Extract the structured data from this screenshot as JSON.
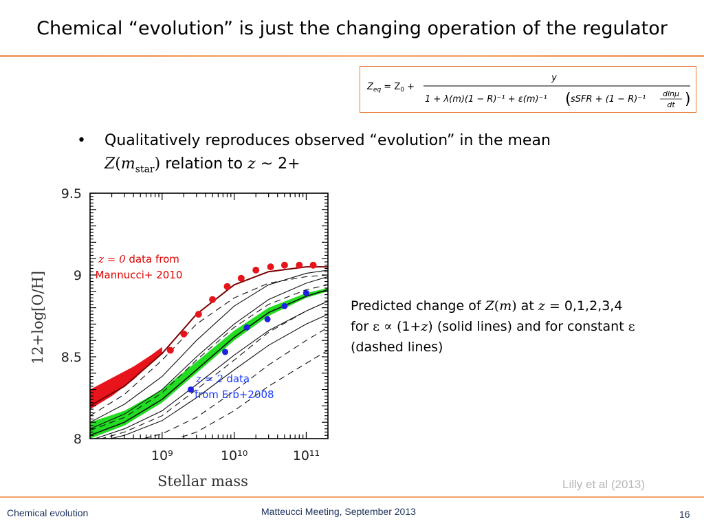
{
  "slide": {
    "title": "Chemical “evolution” is just the changing operation of the regulator",
    "bullet_dot": "•",
    "bullet_line1": "Qualitatively reproduces observed “evolution” in the mean",
    "bullet_Z": "Z",
    "bullet_open": "(",
    "bullet_m": "m",
    "bullet_sub": "star",
    "bullet_close": ")",
    "bullet_rel": " relation to ",
    "bullet_z": "z",
    "bullet_tail": " ~ 2+",
    "predicted_1": "Predicted change of ",
    "predicted_Zm": "Z",
    "predicted_m": "m",
    "predicted_at": " at  ",
    "predicted_z": "z",
    "predicted_vals": " = 0,1,2,3,4",
    "predicted_for": "for ",
    "predicted_eps": "ε ∝",
    "predicted_1plus": " (1+",
    "predicted_zz": "z",
    "predicted_solid": ") (solid lines) and for constant ",
    "predicted_eps2": "ε",
    "predicted_dashed": "(dashed lines)",
    "citation": "Lilly et al (2013)",
    "footer_left": "Chemical evolution",
    "footer_center": "Matteucci Meeting, September  2013",
    "page_number": "16"
  },
  "formula": {
    "lhs": "Z",
    "lhs_sub": "eq",
    "eq": " = Z",
    "z0_sub": "0",
    "plus": " +",
    "numerator": "y",
    "denominator": "1 + λ(m)(1 − R)⁻¹ + ε(m)⁻¹",
    "paren_content": "sSFR + (1 − R)⁻¹",
    "frac_num": "dlnμ",
    "frac_den": "dt"
  },
  "colors": {
    "accent": "#e8742c",
    "red_points": "#e8141c",
    "blue_points": "#2020e0",
    "green_band": "#22dd22",
    "red_band": "#e8141c",
    "dark_red_line": "#7a0000",
    "annotation_red": "#e00000",
    "annotation_blue": "#1a3cff"
  },
  "chart_data": {
    "type": "scatter",
    "xlabel": "Stellar mass",
    "ylabel": "12+log[O/H]",
    "x_scale": "log",
    "xlim": [
      100000000.0,
      200000000000.0
    ],
    "ylim": [
      8.0,
      9.5
    ],
    "yticks": [
      "8",
      "8.5",
      "9",
      "9.5"
    ],
    "xticks": [
      "10⁹",
      "10¹⁰",
      "10¹¹"
    ],
    "annotation_z0_var": "z = 0",
    "annotation_z0_rest": " data from",
    "annotation_z0_line2": "Mannucci+ 2010",
    "annotation_z2_var": "z = 2",
    "annotation_z2_rest": " data",
    "annotation_z2_line2": "from Erb+2008",
    "series": [
      {
        "style": "red-points",
        "x": [
          1300000000.0,
          2000000000.0,
          3200000000.0,
          5000000000.0,
          8000000000.0,
          12500000000.0,
          20000000000.0,
          32000000000.0,
          50000000000.0,
          80000000000.0,
          125000000000.0
        ],
        "y": [
          8.54,
          8.64,
          8.76,
          8.85,
          8.93,
          8.98,
          9.03,
          9.05,
          9.06,
          9.06,
          9.06
        ]
      },
      {
        "style": "blue-points",
        "x": [
          2500000000.0,
          7500000000.0,
          15000000000.0,
          29000000000.0,
          50000000000.0,
          100000000000.0
        ],
        "y": [
          8.3,
          8.53,
          8.68,
          8.73,
          8.81,
          8.89
        ]
      },
      {
        "style": "solid-z0",
        "x": [
          100000000.0,
          300000000.0,
          1000000000.0,
          3000000000.0,
          10000000000.0,
          30000000000.0,
          100000000000.0,
          200000000000.0
        ],
        "y": [
          8.2,
          8.32,
          8.52,
          8.76,
          8.94,
          9.02,
          9.05,
          9.05
        ]
      },
      {
        "style": "solid",
        "x": [
          100000000.0,
          300000000.0,
          1000000000.0,
          3000000000.0,
          10000000000.0,
          30000000000.0,
          100000000000.0,
          200000000000.0
        ],
        "y": [
          8.1,
          8.21,
          8.38,
          8.6,
          8.81,
          8.94,
          9.01,
          9.03
        ]
      },
      {
        "style": "solid",
        "x": [
          100000000.0,
          300000000.0,
          1000000000.0,
          3000000000.0,
          10000000000.0,
          30000000000.0,
          100000000000.0,
          200000000000.0
        ],
        "y": [
          8.06,
          8.15,
          8.3,
          8.5,
          8.7,
          8.85,
          8.95,
          8.99
        ]
      },
      {
        "style": "solid-z2",
        "x": [
          100000000.0,
          300000000.0,
          1000000000.0,
          3000000000.0,
          10000000000.0,
          30000000000.0,
          100000000000.0,
          200000000000.0
        ],
        "y": [
          8.02,
          8.1,
          8.24,
          8.42,
          8.62,
          8.77,
          8.87,
          8.91
        ]
      },
      {
        "style": "solid",
        "x": [
          100000000.0,
          300000000.0,
          1000000000.0,
          3000000000.0,
          10000000000.0,
          30000000000.0,
          100000000000.0,
          200000000000.0
        ],
        "y": [
          7.99,
          8.06,
          8.17,
          8.33,
          8.51,
          8.66,
          8.78,
          8.84
        ]
      },
      {
        "style": "solid",
        "x": [
          100000000.0,
          300000000.0,
          1000000000.0,
          3000000000.0,
          10000000000.0,
          30000000000.0,
          100000000000.0,
          200000000000.0
        ],
        "y": [
          7.97,
          8.02,
          8.11,
          8.25,
          8.42,
          8.57,
          8.7,
          8.76
        ]
      },
      {
        "style": "dashed",
        "x": [
          100000000.0,
          300000000.0,
          1000000000.0,
          3000000000.0,
          10000000000.0,
          30000000000.0,
          100000000000.0,
          200000000000.0
        ],
        "y": [
          8.14,
          8.27,
          8.48,
          8.7,
          8.86,
          8.95,
          8.99,
          9.0
        ]
      },
      {
        "style": "dashed",
        "x": [
          100000000.0,
          300000000.0,
          1000000000.0,
          3000000000.0,
          10000000000.0,
          30000000000.0,
          100000000000.0,
          200000000000.0
        ],
        "y": [
          8.05,
          8.13,
          8.28,
          8.48,
          8.68,
          8.82,
          8.91,
          8.94
        ]
      },
      {
        "style": "dashed",
        "x": [
          100000000.0,
          300000000.0,
          1000000000.0,
          3000000000.0,
          10000000000.0,
          30000000000.0,
          100000000000.0,
          200000000000.0
        ],
        "y": [
          7.98,
          8.04,
          8.14,
          8.3,
          8.48,
          8.65,
          8.78,
          8.84
        ]
      },
      {
        "style": "dashed",
        "x": [
          300000000.0,
          1000000000.0,
          3000000000.0,
          10000000000.0,
          30000000000.0,
          100000000000.0,
          200000000000.0
        ],
        "y": [
          7.97,
          8.03,
          8.13,
          8.29,
          8.45,
          8.6,
          8.68
        ]
      },
      {
        "style": "dashed",
        "x": [
          1000000000.0,
          3000000000.0,
          10000000000.0,
          30000000000.0,
          100000000000.0,
          200000000000.0
        ],
        "y": [
          7.97,
          8.04,
          8.17,
          8.32,
          8.46,
          8.54
        ]
      }
    ],
    "bands": [
      {
        "style": "red-band",
        "x": [
          100000000.0,
          200000000.0,
          400000000.0,
          700000000.0,
          1000000000.0
        ],
        "y_low": [
          8.18,
          8.26,
          8.36,
          8.46,
          8.52
        ],
        "y_high": [
          8.3,
          8.37,
          8.44,
          8.51,
          8.56
        ]
      },
      {
        "style": "green-band",
        "x": [
          100000000.0,
          300000000.0,
          1000000000.0,
          3000000000.0,
          10000000000.0,
          30000000000.0,
          100000000000.0,
          200000000000.0
        ],
        "y_low": [
          8.0,
          8.08,
          8.22,
          8.4,
          8.6,
          8.75,
          8.86,
          8.9
        ],
        "y_high": [
          8.1,
          8.17,
          8.3,
          8.47,
          8.66,
          8.8,
          8.89,
          8.92
        ]
      }
    ]
  }
}
